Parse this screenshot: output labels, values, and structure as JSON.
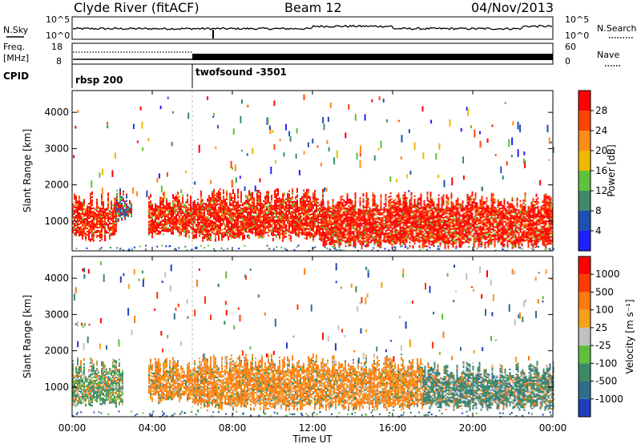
{
  "header": {
    "station": "Clyde River (fitACF)",
    "beam": "Beam 12",
    "date": "04/Nov/2013"
  },
  "noise_panel": {
    "left_label": "N.Sky",
    "right_label": "N.Search",
    "y_top_tick": "10^5",
    "y_bottom_tick": "10^0"
  },
  "freq_panel": {
    "left_label_1": "Freq.",
    "left_label_2": "[MHz]",
    "y_top_tick_left": "18",
    "y_bottom_tick_left": "8",
    "y_top_tick_right": "60",
    "y_bottom_tick_right": "0",
    "right_label": "Nave"
  },
  "cpid": {
    "label": "CPID",
    "programs": [
      {
        "name": "rbsp 200",
        "start_hour": 0
      },
      {
        "name": "twofsound -3501",
        "start_hour": 6
      }
    ]
  },
  "x_axis": {
    "label": "Time UT",
    "ticks": [
      "00:00",
      "04:00",
      "08:00",
      "12:00",
      "16:00",
      "20:00",
      "00:00"
    ]
  },
  "chart_data": [
    {
      "type": "heatmap",
      "title": "",
      "xlabel": "Time UT",
      "ylabel": "Slant Range [km]",
      "x_range_hours": [
        0,
        24
      ],
      "ylim": [
        180,
        4600
      ],
      "y_ticks": [
        "1000",
        "2000",
        "3000",
        "4000"
      ],
      "colorbar": {
        "label": "Power [dB]",
        "tick_labels": [
          "4",
          "8",
          "12",
          "16",
          "20",
          "24",
          "28"
        ],
        "colors": [
          "#1f1fff",
          "#1e4fb4",
          "#3d8a6a",
          "#5fc13c",
          "#f0b800",
          "#ff8c1a",
          "#ff4500",
          "#ff0000"
        ]
      },
      "echo_regions": [
        {
          "start_hour": 0.0,
          "end_hour": 2.2,
          "range_km": [
            500,
            1800
          ],
          "level": "high"
        },
        {
          "start_hour": 2.2,
          "end_hour": 3.0,
          "range_km": [
            1000,
            1900
          ],
          "level": "mixed"
        },
        {
          "start_hour": 3.8,
          "end_hour": 6.0,
          "range_km": [
            600,
            1800
          ],
          "level": "high"
        },
        {
          "start_hour": 6.0,
          "end_hour": 12.5,
          "range_km": [
            500,
            1900
          ],
          "level": "high"
        },
        {
          "start_hour": 12.5,
          "end_hour": 24.0,
          "range_km": [
            300,
            1800
          ],
          "level": "high"
        }
      ]
    },
    {
      "type": "heatmap",
      "title": "",
      "xlabel": "Time UT",
      "ylabel": "Slant Range [km]",
      "x_range_hours": [
        0,
        24
      ],
      "ylim": [
        180,
        4600
      ],
      "y_ticks": [
        "1000",
        "2000",
        "3000",
        "4000"
      ],
      "colorbar": {
        "label": "Velocity [m s⁻¹]",
        "tick_labels": [
          "1000",
          "500",
          "100",
          "25",
          "-25",
          "-100",
          "-500",
          "-1000"
        ],
        "colors": [
          "#1f3fbf",
          "#2e6e8a",
          "#3a8a64",
          "#5fbf3c",
          "#c0c0c0",
          "#f5a11a",
          "#ff7a10",
          "#ff3a00",
          "#ff0000"
        ]
      },
      "echo_regions": [
        {
          "start_hour": 0.0,
          "end_hour": 2.5,
          "range_km": [
            500,
            1800
          ],
          "level": "negative"
        },
        {
          "start_hour": 3.8,
          "end_hour": 6.0,
          "range_km": [
            600,
            1800
          ],
          "level": "away"
        },
        {
          "start_hour": 6.0,
          "end_hour": 17.5,
          "range_km": [
            400,
            1900
          ],
          "level": "away"
        },
        {
          "start_hour": 17.5,
          "end_hour": 24.0,
          "range_km": [
            400,
            1700
          ],
          "level": "toward"
        }
      ]
    }
  ]
}
